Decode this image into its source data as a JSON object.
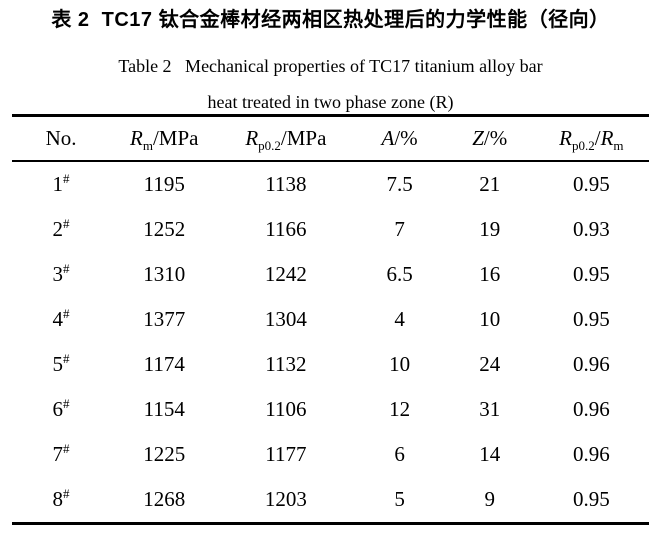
{
  "titles": {
    "chinese": "表 2  TC17 钛合金棒材经两相区热处理后的力学性能（径向）",
    "english_line1": "Table 2   Mechanical properties of TC17 titanium alloy bar",
    "english_line2": "heat treated in two phase zone (R)"
  },
  "table": {
    "headers": [
      [
        {
          "t": "No.",
          "s": "plain"
        }
      ],
      [
        {
          "t": "R",
          "s": "italic"
        },
        {
          "t": "m",
          "s": "sub"
        },
        {
          "t": "/MPa",
          "s": "plain"
        }
      ],
      [
        {
          "t": "R",
          "s": "italic"
        },
        {
          "t": "p0.2",
          "s": "sub"
        },
        {
          "t": "/MPa",
          "s": "plain"
        }
      ],
      [
        {
          "t": "A",
          "s": "italic"
        },
        {
          "t": "/%",
          "s": "plain"
        }
      ],
      [
        {
          "t": "Z",
          "s": "italic"
        },
        {
          "t": "/%",
          "s": "plain"
        }
      ],
      [
        {
          "t": "R",
          "s": "italic"
        },
        {
          "t": "p0.2",
          "s": "sub"
        },
        {
          "t": "/",
          "s": "plain"
        },
        {
          "t": "R",
          "s": "italic"
        },
        {
          "t": "m",
          "s": "sub"
        }
      ]
    ],
    "rows": [
      {
        "no": "1",
        "no_mark": "#",
        "rm": "1195",
        "rp02": "1138",
        "a": "7.5",
        "z": "21",
        "ratio": "0.95"
      },
      {
        "no": "2",
        "no_mark": "#",
        "rm": "1252",
        "rp02": "1166",
        "a": "7",
        "z": "19",
        "ratio": "0.93"
      },
      {
        "no": "3",
        "no_mark": "#",
        "rm": "1310",
        "rp02": "1242",
        "a": "6.5",
        "z": "16",
        "ratio": "0.95"
      },
      {
        "no": "4",
        "no_mark": "#",
        "rm": "1377",
        "rp02": "1304",
        "a": "4",
        "z": "10",
        "ratio": "0.95"
      },
      {
        "no": "5",
        "no_mark": "#",
        "rm": "1174",
        "rp02": "1132",
        "a": "10",
        "z": "24",
        "ratio": "0.96"
      },
      {
        "no": "6",
        "no_mark": "#",
        "rm": "1154",
        "rp02": "1106",
        "a": "12",
        "z": "31",
        "ratio": "0.96"
      },
      {
        "no": "7",
        "no_mark": "#",
        "rm": "1225",
        "rp02": "1177",
        "a": "6",
        "z": "14",
        "ratio": "0.96"
      },
      {
        "no": "8",
        "no_mark": "#",
        "rm": "1268",
        "rp02": "1203",
        "a": "5",
        "z": "9",
        "ratio": "0.95"
      }
    ]
  },
  "colors": {
    "text": "#000000",
    "background": "#ffffff",
    "rule": "#000000"
  }
}
